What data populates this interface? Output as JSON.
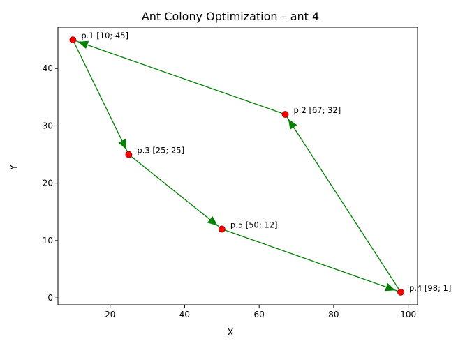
{
  "chart_data": {
    "type": "scatter",
    "title": "Ant Colony Optimization – ant 4",
    "xlabel": "X",
    "ylabel": "Y",
    "xlim": [
      6,
      102.5
    ],
    "ylim": [
      -1.2,
      47.2
    ],
    "xticks": [
      20,
      40,
      60,
      80,
      100
    ],
    "yticks": [
      0,
      10,
      20,
      30,
      40
    ],
    "grid": false,
    "point_color": "#ff0000",
    "point_edge_color": "#8b0000",
    "path_color": "#008000",
    "points": [
      {
        "id": "p1",
        "x": 10,
        "y": 45,
        "label": "p.1 [10; 45]"
      },
      {
        "id": "p2",
        "x": 67,
        "y": 32,
        "label": "p.2 [67; 32]"
      },
      {
        "id": "p3",
        "x": 25,
        "y": 25,
        "label": "p.3 [25; 25]"
      },
      {
        "id": "p5",
        "x": 50,
        "y": 12,
        "label": "p.5 [50; 12]"
      },
      {
        "id": "p4",
        "x": 98,
        "y": 1,
        "label": "p.4 [98; 1]"
      }
    ],
    "path": [
      {
        "from": [
          10,
          45
        ],
        "to": [
          25,
          25
        ]
      },
      {
        "from": [
          25,
          25
        ],
        "to": [
          50,
          12
        ]
      },
      {
        "from": [
          50,
          12
        ],
        "to": [
          98,
          1
        ]
      },
      {
        "from": [
          98,
          1
        ],
        "to": [
          67,
          32
        ]
      },
      {
        "from": [
          67,
          32
        ],
        "to": [
          10,
          45
        ]
      }
    ]
  }
}
